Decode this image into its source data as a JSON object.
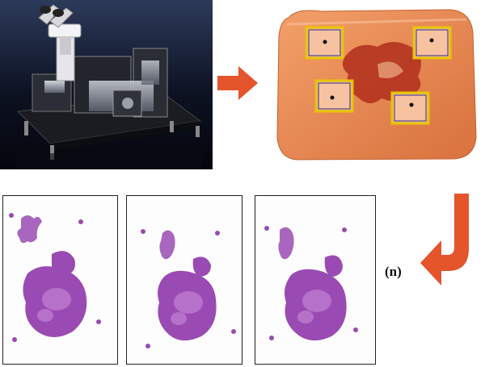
{
  "diagram": {
    "steps": [
      {
        "id": "microscope",
        "icon": "stereo-microscope-dissection-stage"
      },
      {
        "id": "tissue-block",
        "icon": "paraffin-block-with-four-marked-regions"
      },
      {
        "id": "slides",
        "icon": "stained-tissue-section-slides",
        "count_shown": 3
      }
    ],
    "repeat_label": "(n)",
    "colors": {
      "arrow": "#e4552b",
      "marker_frame": "#e8c400",
      "marker_frame_inner": "#2a2a8a",
      "paraffin": "#e98a55",
      "stain": "#9a4bb3"
    }
  }
}
